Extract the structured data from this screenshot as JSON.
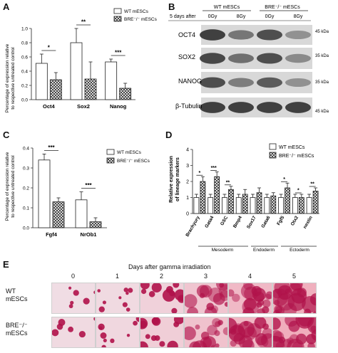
{
  "panels": {
    "A": {
      "letter": "A",
      "ylabel_line1": "Percentage of expression relative",
      "ylabel_line2": "to respective untreated control",
      "legend": [
        "WT mESCs",
        "BRE⁻/⁻ mESCs"
      ]
    },
    "B": {
      "letter": "B",
      "header_group1": "WT mESCs",
      "header_group2": "BRE⁻/⁻ mESCs",
      "header_row_label": "5 days after",
      "doses": [
        "0Gy",
        "8Gy",
        "0Gy",
        "8Gy"
      ],
      "rows": [
        {
          "label": "OCT4",
          "kda": "45 kDa"
        },
        {
          "label": "SOX2",
          "kda": "35 kDa"
        },
        {
          "label": "NANOG",
          "kda": "35 kDa"
        },
        {
          "label": "β-Tubulin",
          "kda": "45 kDa"
        }
      ]
    },
    "C": {
      "letter": "C",
      "ylabel_line1": "Percentage of expression relative",
      "ylabel_line2": "to respective untreated control",
      "legend": [
        "WT mESCs",
        "BRE⁻/⁻ mESCs"
      ]
    },
    "D": {
      "letter": "D",
      "ylabel_line1": "Relative expression",
      "ylabel_line2": "of lineage markers",
      "legend": [
        "WT mESCs",
        "BRE⁻/⁻ mESCs"
      ],
      "groups": [
        "Mesoderm",
        "Endoderm",
        "Ectoderm"
      ]
    },
    "E": {
      "letter": "E",
      "title": "Days after gamma irradiation",
      "days": [
        "0",
        "1",
        "2",
        "3",
        "4",
        "5"
      ],
      "row1_line1": "WT",
      "row1_line2": "mESCs",
      "row2_line1": "BRE⁻/⁻",
      "row2_line2": "mESCs"
    }
  },
  "colors": {
    "bar_wt": "#ffffff",
    "bar_bre_hatch": "#222222",
    "stain": "#b0124a"
  },
  "chart_data": [
    {
      "id": "A",
      "type": "bar",
      "categories": [
        "Oct4",
        "Sox2",
        "Nanog"
      ],
      "series": [
        {
          "name": "WT mESCs",
          "values": [
            0.51,
            0.8,
            0.53
          ],
          "errors": [
            0.13,
            0.2,
            0.04
          ]
        },
        {
          "name": "BRE⁻/⁻ mESCs",
          "values": [
            0.28,
            0.29,
            0.16
          ],
          "errors": [
            0.1,
            0.24,
            0.07
          ]
        }
      ],
      "significance": [
        "*",
        "**",
        "***"
      ],
      "ylim": [
        0,
        1.0
      ],
      "yticks": [
        "0.0",
        "0.2",
        "0.4",
        "0.6",
        "0.8",
        "1.0"
      ]
    },
    {
      "id": "C",
      "type": "bar",
      "categories": [
        "Fgf4",
        "NrOb1"
      ],
      "series": [
        {
          "name": "WT mESCs",
          "values": [
            0.34,
            0.14
          ],
          "errors": [
            0.03,
            0.04
          ]
        },
        {
          "name": "BRE⁻/⁻ mESCs",
          "values": [
            0.13,
            0.03
          ],
          "errors": [
            0.02,
            0.02
          ]
        }
      ],
      "significance": [
        "***",
        "***"
      ],
      "ylim": [
        0,
        0.4
      ],
      "yticks": [
        "0.0",
        "0.1",
        "0.2",
        "0.3",
        "0.4"
      ]
    },
    {
      "id": "D",
      "type": "bar",
      "categories": [
        "Brachyury",
        "Gata4",
        "GSC",
        "Bmp4",
        "Sox17",
        "Gata6",
        "Fgf5",
        "Otx2",
        "nestin"
      ],
      "series": [
        {
          "name": "WT mESCs",
          "values": [
            1.0,
            1.0,
            1.0,
            1.0,
            1.0,
            1.0,
            1.0,
            1.0,
            1.0
          ],
          "errors": [
            0.2,
            0.2,
            0.2,
            0.2,
            0.2,
            0.2,
            0.2,
            0.2,
            0.2
          ]
        },
        {
          "name": "BRE⁻/⁻ mESCs",
          "values": [
            2.0,
            2.3,
            1.5,
            1.2,
            1.3,
            1.1,
            1.6,
            1.0,
            1.4
          ],
          "errors": [
            0.3,
            0.3,
            0.2,
            0.3,
            0.3,
            0.2,
            0.3,
            0.2,
            0.2
          ]
        }
      ],
      "significance": [
        "*",
        "***",
        "**",
        "",
        "",
        "",
        "*",
        "*",
        "**"
      ],
      "ylim": [
        0,
        4
      ],
      "yticks": [
        "0",
        "1",
        "2",
        "3",
        "4"
      ]
    }
  ]
}
